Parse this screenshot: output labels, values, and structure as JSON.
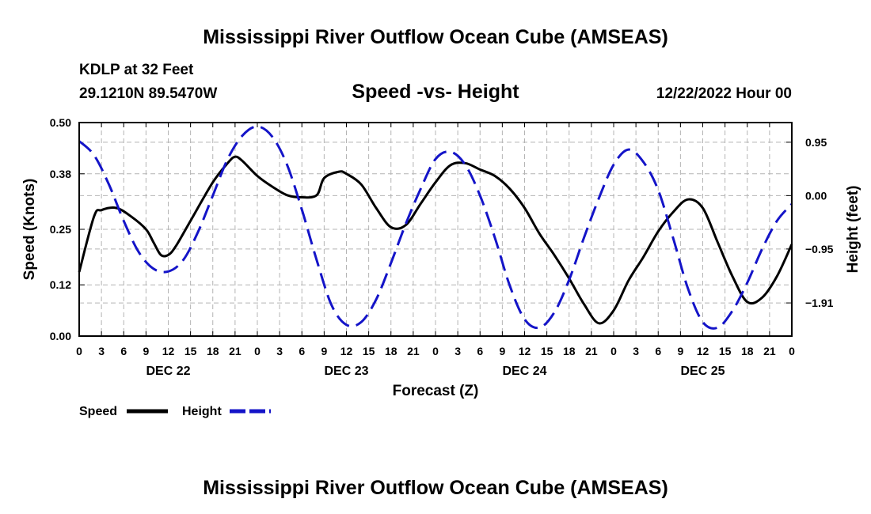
{
  "header": {
    "title": "Mississippi River Outflow Ocean Cube (AMSEAS)",
    "station": "KDLP at 32 Feet",
    "coords": "29.1210N  89.5470W",
    "subtitle": "Speed -vs- Height",
    "datetime": "12/22/2022 Hour 00"
  },
  "footer": {
    "title": "Mississippi River Outflow Ocean Cube (AMSEAS)"
  },
  "legend": {
    "speed_label": "Speed",
    "height_label": "Height"
  },
  "colors": {
    "speed": "#000000",
    "height": "#1414c8",
    "grid": "#b4b4b4"
  },
  "chart_data": {
    "type": "line",
    "title": "Speed -vs- Height",
    "xlabel": "Forecast (Z)",
    "ylabel_left": "Speed (Knots)",
    "ylabel_right": "Height (feet)",
    "xlim": [
      0,
      96
    ],
    "ylim_left": [
      0,
      0.5
    ],
    "ylim_right": [
      -2.5,
      1.3
    ],
    "x_tick_labels": [
      "0",
      "3",
      "6",
      "9",
      "12",
      "15",
      "18",
      "21",
      "0",
      "3",
      "6",
      "9",
      "12",
      "15",
      "18",
      "21",
      "0",
      "3",
      "6",
      "9",
      "12",
      "15",
      "18",
      "21",
      "0",
      "3",
      "6",
      "9",
      "12",
      "15",
      "18",
      "21",
      "0"
    ],
    "y_ticks_left": [
      0.0,
      0.12,
      0.25,
      0.38,
      0.5
    ],
    "y_tick_labels_left": [
      "0.00",
      "0.12",
      "0.25",
      "0.38",
      "0.50"
    ],
    "y_ticks_right": [
      0.95,
      0.0,
      -0.95,
      -1.91
    ],
    "y_tick_labels_right": [
      "0.95",
      "0.00",
      "−0.95",
      "−1.91"
    ],
    "day_labels": [
      {
        "label": "DEC 22",
        "hour": 12
      },
      {
        "label": "DEC 23",
        "hour": 36
      },
      {
        "label": "DEC 24",
        "hour": 60
      },
      {
        "label": "DEC 25",
        "hour": 84
      }
    ],
    "series": [
      {
        "name": "Speed",
        "axis": "left",
        "style": "solid",
        "x": [
          0,
          2,
          3,
          5,
          7,
          9,
          10,
          11,
          12,
          13,
          15,
          18,
          20,
          21,
          22,
          24,
          26,
          28,
          30,
          32,
          33,
          35,
          36,
          38,
          40,
          42,
          44,
          46,
          48,
          50,
          52,
          54,
          56,
          58,
          60,
          62,
          64,
          66,
          68,
          70,
          72,
          74,
          76,
          78,
          80,
          82,
          84,
          86,
          88,
          90,
          92,
          94,
          96
        ],
        "values": [
          0.15,
          0.28,
          0.295,
          0.3,
          0.28,
          0.25,
          0.22,
          0.19,
          0.19,
          0.21,
          0.27,
          0.36,
          0.405,
          0.42,
          0.41,
          0.375,
          0.35,
          0.33,
          0.325,
          0.33,
          0.37,
          0.385,
          0.38,
          0.355,
          0.3,
          0.255,
          0.26,
          0.31,
          0.36,
          0.4,
          0.405,
          0.39,
          0.375,
          0.345,
          0.3,
          0.24,
          0.19,
          0.135,
          0.075,
          0.03,
          0.06,
          0.13,
          0.185,
          0.245,
          0.29,
          0.32,
          0.3,
          0.22,
          0.14,
          0.08,
          0.09,
          0.14,
          0.215
        ]
      },
      {
        "name": "Height",
        "axis": "right",
        "style": "dashed",
        "x": [
          0,
          2,
          4,
          6,
          8,
          10,
          12,
          14,
          16,
          18,
          20,
          22,
          24,
          26,
          28,
          30,
          32,
          34,
          36,
          38,
          40,
          42,
          44,
          46,
          48,
          50,
          52,
          54,
          56,
          58,
          60,
          62,
          64,
          66,
          68,
          70,
          72,
          74,
          76,
          78,
          80,
          82,
          84,
          86,
          88,
          90,
          92,
          94,
          96
        ],
        "values": [
          0.97,
          0.72,
          0.2,
          -0.45,
          -1.0,
          -1.3,
          -1.35,
          -1.15,
          -0.65,
          0.0,
          0.65,
          1.07,
          1.23,
          1.05,
          0.55,
          -0.25,
          -1.15,
          -1.95,
          -2.3,
          -2.25,
          -1.85,
          -1.2,
          -0.5,
          0.12,
          0.65,
          0.78,
          0.55,
          0.0,
          -0.75,
          -1.6,
          -2.2,
          -2.35,
          -2.08,
          -1.5,
          -0.75,
          -0.05,
          0.55,
          0.82,
          0.6,
          0.1,
          -0.75,
          -1.65,
          -2.25,
          -2.35,
          -2.05,
          -1.55,
          -0.95,
          -0.45,
          -0.15
        ]
      }
    ]
  }
}
